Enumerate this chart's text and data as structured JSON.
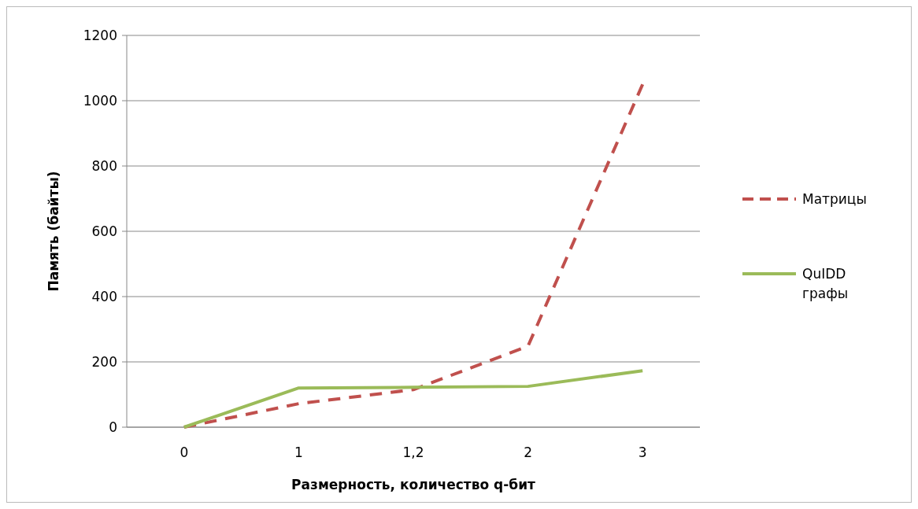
{
  "chart_data": {
    "type": "line",
    "xlabel": "Размерность,  количество  q-бит",
    "ylabel": "Память  (байты)",
    "categories": [
      "0",
      "1",
      "1,2",
      "2",
      "3"
    ],
    "ylim": [
      0,
      1200
    ],
    "yticks": [
      0,
      200,
      400,
      600,
      800,
      1000,
      1200
    ],
    "grid": "y",
    "legend": "right",
    "marker": "none",
    "series": [
      {
        "name": "Матрицы",
        "color": "#c0504d",
        "line_style": "dashed",
        "values": [
          0,
          72,
          115,
          248,
          1050
        ]
      },
      {
        "name": "QuIDD графы",
        "color": "#9bbb59",
        "line_style": "solid",
        "values": [
          0,
          120,
          122,
          125,
          173
        ]
      }
    ]
  }
}
